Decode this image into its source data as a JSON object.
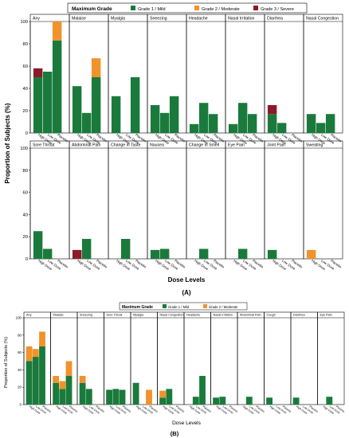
{
  "figure_a": {
    "legend": {
      "title": "Maximum Grade",
      "items": [
        "Grade 1 / Mild",
        "Grade 2 / Moderate",
        "Grade 3 / Severe"
      ]
    },
    "ylabel": "Proportion of Subjects (%)",
    "xlabel": "Dose Levels",
    "caption": "(A)"
  },
  "figure_b": {
    "legend": {
      "title": "Maximum Grade",
      "items": [
        "Grade 1 / Mild",
        "Grade 2 / Moderate"
      ]
    },
    "ylabel": "Proportion of Subjects (%)",
    "xlabel": "Dose Levels",
    "caption": "(B)"
  },
  "colors": {
    "mild": "#1a7a3c",
    "moderate": "#f0932b",
    "severe": "#8b1a2b",
    "frame": "#000000"
  },
  "chart_data": [
    {
      "type": "bar",
      "stacked": true,
      "panel": "A",
      "dose_levels": [
        "High Dose",
        "Low Dose",
        "Placebo"
      ],
      "ylim": [
        0,
        100
      ],
      "yticks": [
        0,
        20,
        40,
        60,
        80,
        100
      ],
      "rows": [
        [
          {
            "name": "Any",
            "bars": [
              [
                50,
                0,
                8
              ],
              [
                55,
                0,
                0
              ],
              [
                83,
                17,
                0
              ]
            ]
          },
          {
            "name": "Malaise",
            "bars": [
              [
                42,
                0,
                0
              ],
              [
                18,
                0,
                0
              ],
              [
                50,
                17,
                0
              ]
            ]
          },
          {
            "name": "Myalgia",
            "bars": [
              [
                33,
                0,
                0
              ],
              [
                0,
                0,
                0
              ],
              [
                50,
                0,
                0
              ]
            ]
          },
          {
            "name": "Sneezing",
            "bars": [
              [
                25,
                0,
                0
              ],
              [
                18,
                0,
                0
              ],
              [
                33,
                0,
                0
              ]
            ]
          },
          {
            "name": "Headache",
            "bars": [
              [
                8,
                0,
                0
              ],
              [
                27,
                0,
                0
              ],
              [
                17,
                0,
                0
              ]
            ]
          },
          {
            "name": "Nasal Irritation",
            "bars": [
              [
                8,
                0,
                0
              ],
              [
                27,
                0,
                0
              ],
              [
                17,
                0,
                0
              ]
            ]
          },
          {
            "name": "Diarrhea",
            "bars": [
              [
                17,
                0,
                8
              ],
              [
                9,
                0,
                0
              ],
              [
                0,
                0,
                0
              ]
            ]
          },
          {
            "name": "Nasal Congestion",
            "bars": [
              [
                17,
                0,
                0
              ],
              [
                9,
                0,
                0
              ],
              [
                17,
                0,
                0
              ]
            ]
          }
        ],
        [
          {
            "name": "Sore Throat",
            "bars": [
              [
                25,
                0,
                0
              ],
              [
                9,
                0,
                0
              ],
              [
                0,
                0,
                0
              ]
            ]
          },
          {
            "name": "Abdominal Pain",
            "bars": [
              [
                0,
                0,
                8
              ],
              [
                18,
                0,
                0
              ],
              [
                0,
                0,
                0
              ]
            ]
          },
          {
            "name": "Change in Taste",
            "bars": [
              [
                0,
                0,
                0
              ],
              [
                18,
                0,
                0
              ],
              [
                0,
                0,
                0
              ]
            ]
          },
          {
            "name": "Nausea",
            "bars": [
              [
                8,
                0,
                0
              ],
              [
                9,
                0,
                0
              ],
              [
                0,
                0,
                0
              ]
            ]
          },
          {
            "name": "Change in Smell",
            "bars": [
              [
                0,
                0,
                0
              ],
              [
                9,
                0,
                0
              ],
              [
                0,
                0,
                0
              ]
            ]
          },
          {
            "name": "Eye Pain",
            "bars": [
              [
                0,
                0,
                0
              ],
              [
                9,
                0,
                0
              ],
              [
                0,
                0,
                0
              ]
            ]
          },
          {
            "name": "Joint Pain",
            "bars": [
              [
                8,
                0,
                0
              ],
              [
                0,
                0,
                0
              ],
              [
                0,
                0,
                0
              ]
            ]
          },
          {
            "name": "Sweating",
            "bars": [
              [
                0,
                8,
                0
              ],
              [
                0,
                0,
                0
              ],
              [
                0,
                0,
                0
              ]
            ]
          }
        ]
      ]
    },
    {
      "type": "bar",
      "stacked": true,
      "panel": "B",
      "dose_levels": [
        "High Dose",
        "Low Dose",
        "Placebo"
      ],
      "ylim": [
        0,
        100
      ],
      "yticks": [
        0,
        20,
        40,
        60,
        80,
        100
      ],
      "rows": [
        [
          {
            "name": "Any",
            "bars": [
              [
                50,
                17,
                0
              ],
              [
                55,
                9,
                0
              ],
              [
                67,
                17,
                0
              ]
            ]
          },
          {
            "name": "Malaise",
            "bars": [
              [
                25,
                8,
                0
              ],
              [
                18,
                9,
                0
              ],
              [
                33,
                17,
                0
              ]
            ]
          },
          {
            "name": "Sneezing",
            "bars": [
              [
                25,
                8,
                0
              ],
              [
                18,
                0,
                0
              ],
              [
                0,
                0,
                0
              ]
            ]
          },
          {
            "name": "Sore Throat",
            "bars": [
              [
                17,
                0,
                0
              ],
              [
                18,
                0,
                0
              ],
              [
                17,
                0,
                0
              ]
            ]
          },
          {
            "name": "Myalgia",
            "bars": [
              [
                25,
                0,
                0
              ],
              [
                0,
                0,
                0
              ],
              [
                0,
                17,
                0
              ]
            ]
          },
          {
            "name": "Nasal Congestion",
            "bars": [
              [
                8,
                8,
                0
              ],
              [
                18,
                0,
                0
              ],
              [
                0,
                0,
                0
              ]
            ]
          },
          {
            "name": "Headache",
            "bars": [
              [
                0,
                0,
                0
              ],
              [
                9,
                0,
                0
              ],
              [
                33,
                0,
                0
              ]
            ]
          },
          {
            "name": "Nasal Irritation",
            "bars": [
              [
                8,
                0,
                0
              ],
              [
                9,
                0,
                0
              ],
              [
                0,
                0,
                0
              ]
            ]
          },
          {
            "name": "Abdominal Pain",
            "bars": [
              [
                0,
                0,
                0
              ],
              [
                9,
                0,
                0
              ],
              [
                0,
                0,
                0
              ]
            ]
          },
          {
            "name": "Cough",
            "bars": [
              [
                8,
                0,
                0
              ],
              [
                0,
                0,
                0
              ],
              [
                0,
                0,
                0
              ]
            ]
          },
          {
            "name": "Diarrhea",
            "bars": [
              [
                8,
                0,
                0
              ],
              [
                0,
                0,
                0
              ],
              [
                0,
                0,
                0
              ]
            ]
          },
          {
            "name": "Eye Pain",
            "bars": [
              [
                0,
                0,
                0
              ],
              [
                9,
                0,
                0
              ],
              [
                0,
                0,
                0
              ]
            ]
          }
        ]
      ]
    }
  ]
}
